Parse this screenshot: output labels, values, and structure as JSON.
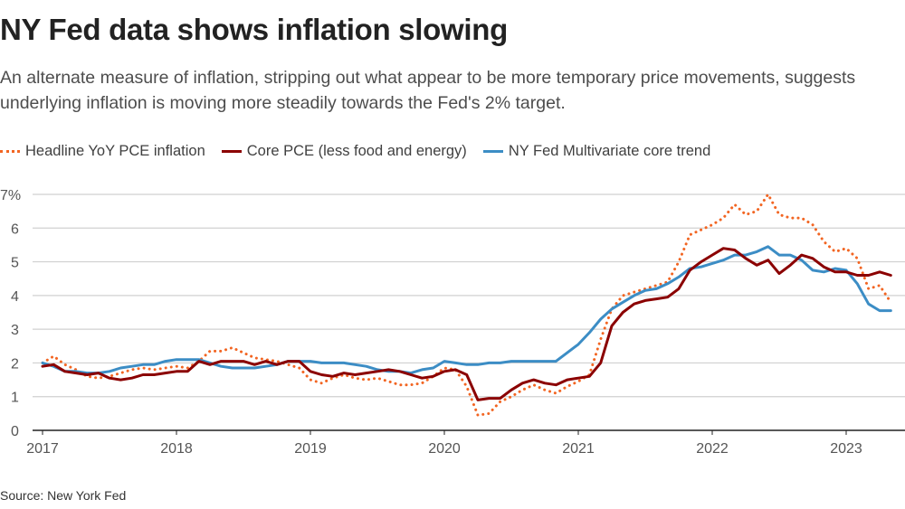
{
  "header": {
    "title": "NY Fed data shows inflation slowing",
    "subtitle": "An alternate measure of inflation, stripping out what appear to be more temporary price movements, suggests underlying inflation is moving more steadily towards the Fed's 2% target."
  },
  "footer": {
    "source": "Source: New York Fed"
  },
  "chart_data": {
    "type": "line",
    "title": "NY Fed data shows inflation slowing",
    "xlabel": "",
    "ylabel": "",
    "x_start": "2017-01",
    "x_frequency": "monthly",
    "x_ticks": [
      "2017",
      "2018",
      "2019",
      "2020",
      "2021",
      "2022",
      "2023"
    ],
    "y_ticks": [
      "0",
      "1",
      "2",
      "3",
      "4",
      "5",
      "6",
      "7%"
    ],
    "ylim": [
      0,
      7
    ],
    "grid": true,
    "legend_position": "top-left",
    "series": [
      {
        "name": "Headline YoY PCE inflation",
        "color": "#f26522",
        "style": "dotted",
        "values": [
          2.0,
          2.2,
          1.95,
          1.8,
          1.6,
          1.55,
          1.6,
          1.7,
          1.8,
          1.85,
          1.8,
          1.85,
          1.9,
          1.85,
          2.05,
          2.35,
          2.35,
          2.45,
          2.3,
          2.15,
          2.1,
          2.05,
          1.95,
          1.85,
          1.5,
          1.4,
          1.55,
          1.65,
          1.55,
          1.5,
          1.55,
          1.45,
          1.35,
          1.35,
          1.4,
          1.6,
          1.85,
          1.8,
          1.3,
          0.45,
          0.5,
          0.85,
          1.0,
          1.2,
          1.35,
          1.2,
          1.1,
          1.3,
          1.45,
          1.65,
          2.7,
          3.6,
          4.0,
          4.1,
          4.2,
          4.3,
          4.4,
          5.0,
          5.8,
          5.95,
          6.1,
          6.3,
          6.7,
          6.4,
          6.5,
          7.0,
          6.4,
          6.3,
          6.3,
          6.1,
          5.6,
          5.3,
          5.4,
          5.1,
          4.2,
          4.3,
          3.8
        ]
      },
      {
        "name": "Core PCE (less food and energy)",
        "color": "#8b0000",
        "style": "solid",
        "values": [
          1.9,
          1.95,
          1.75,
          1.7,
          1.65,
          1.7,
          1.55,
          1.5,
          1.55,
          1.65,
          1.65,
          1.7,
          1.75,
          1.75,
          2.05,
          1.95,
          2.05,
          2.05,
          2.05,
          1.95,
          2.05,
          1.95,
          2.05,
          2.05,
          1.75,
          1.65,
          1.6,
          1.7,
          1.65,
          1.7,
          1.75,
          1.8,
          1.75,
          1.65,
          1.55,
          1.6,
          1.75,
          1.8,
          1.65,
          0.9,
          0.95,
          0.95,
          1.2,
          1.4,
          1.5,
          1.4,
          1.35,
          1.5,
          1.55,
          1.6,
          2.0,
          3.1,
          3.5,
          3.75,
          3.85,
          3.9,
          3.95,
          4.2,
          4.75,
          5.0,
          5.2,
          5.4,
          5.35,
          5.1,
          4.9,
          5.05,
          4.65,
          4.9,
          5.2,
          5.1,
          4.85,
          4.7,
          4.7,
          4.6,
          4.6,
          4.7,
          4.6
        ]
      },
      {
        "name": "NY Fed Multivariate core trend",
        "color": "#3c8dc5",
        "style": "solid",
        "values": [
          2.0,
          1.9,
          1.75,
          1.75,
          1.7,
          1.7,
          1.75,
          1.85,
          1.9,
          1.95,
          1.95,
          2.05,
          2.1,
          2.1,
          2.1,
          2.0,
          1.9,
          1.85,
          1.85,
          1.85,
          1.9,
          1.95,
          2.05,
          2.05,
          2.05,
          2.0,
          2.0,
          2.0,
          1.95,
          1.9,
          1.8,
          1.75,
          1.75,
          1.7,
          1.8,
          1.85,
          2.05,
          2.0,
          1.95,
          1.95,
          2.0,
          2.0,
          2.05,
          2.05,
          2.05,
          2.05,
          2.05,
          2.3,
          2.55,
          2.9,
          3.3,
          3.6,
          3.8,
          4.0,
          4.15,
          4.2,
          4.35,
          4.55,
          4.8,
          4.85,
          4.95,
          5.05,
          5.2,
          5.2,
          5.3,
          5.45,
          5.2,
          5.2,
          5.05,
          4.75,
          4.7,
          4.8,
          4.75,
          4.35,
          3.75,
          3.55,
          3.55
        ]
      }
    ]
  }
}
